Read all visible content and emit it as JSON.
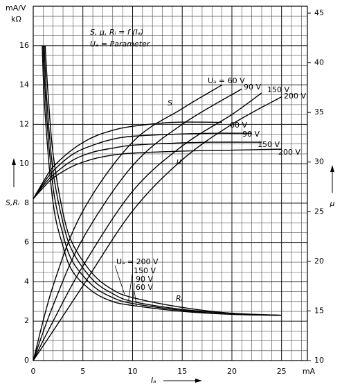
{
  "chart_data": {
    "type": "line",
    "title": "S, μ, Rᵢ = f (Iₐ)",
    "subtitle": "Uₐ = Parameter",
    "x_label": "Iₐ",
    "x_unit": "mA",
    "y_label": "S,Rᵢ",
    "y_unit_top": "mA/V",
    "y_unit_bottom": "kΩ",
    "y2_label": "μ",
    "annotations": [
      "S",
      "μ",
      "Rᵢ"
    ],
    "xlim": [
      0,
      27.6
    ],
    "xticks": [
      0,
      5,
      10,
      15,
      20,
      25
    ],
    "ylim": [
      0,
      18
    ],
    "yticks": [
      0,
      2,
      4,
      6,
      8,
      10,
      12,
      14,
      16
    ],
    "y2lim": [
      10,
      45.7
    ],
    "y2ticks": [
      10,
      15,
      20,
      25,
      30,
      35,
      40,
      45
    ],
    "grid": true,
    "series": [
      {
        "name": "Uₐ = 60 V",
        "color": "#000000",
        "axis": "y",
        "x": [
          0,
          2,
          5,
          10,
          15,
          19
        ],
        "values": [
          0,
          3.8,
          7.6,
          11.1,
          12.8,
          14.0
        ]
      },
      {
        "name": "90 V",
        "color": "#000000",
        "axis": "y",
        "x": [
          0,
          2,
          5,
          10,
          15,
          21
        ],
        "values": [
          0,
          2.8,
          6.2,
          9.9,
          12.0,
          13.8
        ]
      },
      {
        "name": "150 V",
        "color": "#000000",
        "axis": "y",
        "x": [
          0,
          2,
          5,
          10,
          15,
          20,
          23
        ],
        "values": [
          0,
          2.0,
          4.8,
          8.6,
          10.9,
          12.5,
          13.6
        ]
      },
      {
        "name": "200 V",
        "color": "#000000",
        "axis": "y",
        "x": [
          0,
          2,
          5,
          10,
          15,
          20,
          25
        ],
        "values": [
          0,
          1.5,
          3.8,
          7.6,
          10.2,
          12.0,
          13.4
        ]
      },
      {
        "name": "60 V",
        "color": "#000000",
        "axis": "y2",
        "x": [
          0,
          1,
          2,
          4,
          6,
          8,
          10,
          14,
          19
        ],
        "values": [
          26.3,
          28,
          29.5,
          31.3,
          32.5,
          33.2,
          33.6,
          34.0,
          34.0
        ]
      },
      {
        "name": "90 V",
        "color": "#000000",
        "axis": "y2",
        "x": [
          0,
          1,
          2,
          4,
          6,
          8,
          10,
          14,
          18,
          22
        ],
        "values": [
          26.3,
          27.8,
          29.1,
          30.8,
          31.7,
          32.3,
          32.6,
          32.8,
          32.9,
          32.9
        ]
      },
      {
        "name": "150 V",
        "color": "#000000",
        "axis": "y2",
        "x": [
          0,
          1,
          2,
          4,
          6,
          8,
          10,
          14,
          18,
          23
        ],
        "values": [
          26.3,
          27.6,
          28.7,
          30.2,
          31.0,
          31.4,
          31.7,
          31.9,
          32.0,
          32.0
        ]
      },
      {
        "name": "200 V",
        "color": "#000000",
        "axis": "y2",
        "x": [
          0,
          1,
          2,
          4,
          6,
          8,
          10,
          15,
          20,
          25
        ],
        "values": [
          26.3,
          27.4,
          28.4,
          29.6,
          30.3,
          30.7,
          30.9,
          31.1,
          31.2,
          31.3
        ]
      },
      {
        "name": "Uₐ = 200 V",
        "color": "#000000",
        "axis": "y",
        "x": [
          1.2,
          1.5,
          2,
          3,
          4,
          6,
          8,
          10,
          15,
          20,
          25
        ],
        "values": [
          16,
          13.5,
          10.5,
          7.5,
          5.9,
          4.4,
          3.6,
          3.2,
          2.7,
          2.4,
          2.3
        ]
      },
      {
        "name": "150 V",
        "color": "#000000",
        "axis": "y",
        "x": [
          1.1,
          1.4,
          2,
          3,
          4,
          6,
          8,
          10,
          15,
          20,
          25
        ],
        "values": [
          16,
          13,
          9.6,
          7,
          5.5,
          4.1,
          3.4,
          3.0,
          2.6,
          2.4,
          2.3
        ]
      },
      {
        "name": "90 V",
        "color": "#000000",
        "axis": "y",
        "x": [
          1.0,
          1.3,
          2,
          3,
          4,
          6,
          8,
          10,
          15,
          20,
          25
        ],
        "values": [
          16,
          12.8,
          8.8,
          6.4,
          5.0,
          3.8,
          3.2,
          2.9,
          2.55,
          2.35,
          2.3
        ]
      },
      {
        "name": "60 V",
        "color": "#000000",
        "axis": "y",
        "x": [
          0.9,
          1.2,
          2,
          3,
          4,
          6,
          8,
          10,
          15,
          20,
          25
        ],
        "values": [
          16,
          12.5,
          8.0,
          5.8,
          4.5,
          3.5,
          3.0,
          2.8,
          2.5,
          2.35,
          2.3
        ]
      }
    ]
  }
}
